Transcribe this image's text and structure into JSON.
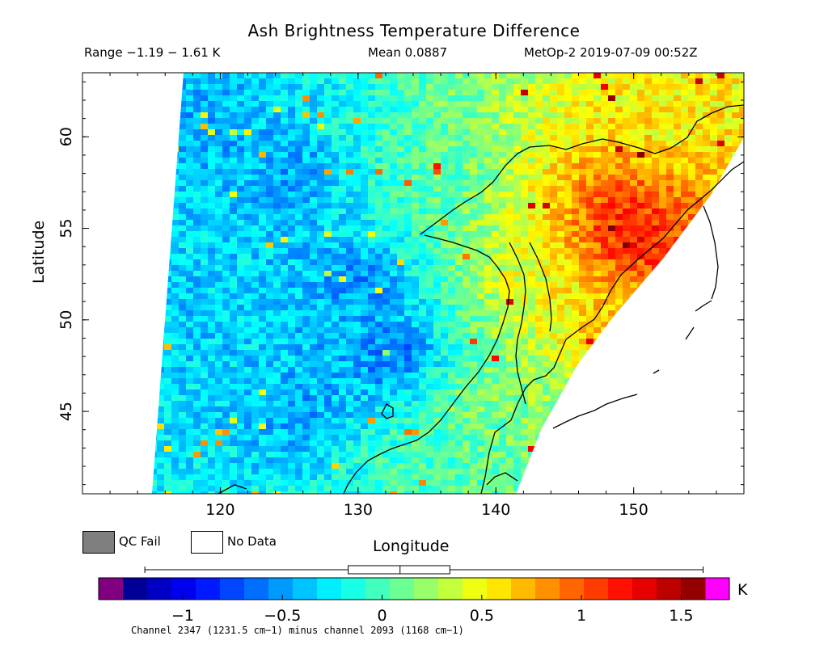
{
  "header": {
    "title": "Ash Brightness Temperature Difference",
    "range": "Range −1.19 − 1.61 K",
    "mean": "Mean 0.0887",
    "satellite": "MetOp-2 2019-07-09 00:52Z"
  },
  "legend": {
    "qc_fail": "QC Fail",
    "no_data": "No Data",
    "qc_fail_color": "#7f7f7f",
    "no_data_color": "#ffffff"
  },
  "colorbar": {
    "units": "K",
    "min": -1.3,
    "max": 1.62,
    "ticks": [
      "−1",
      "−0.5",
      "0",
      "0.5",
      "1",
      "1.5"
    ],
    "tick_values": [
      -1,
      -0.5,
      0,
      0.5,
      1,
      1.5
    ],
    "under_color": "#800080",
    "over_color": "#ff00ff",
    "boxplot": {
      "min": -1.19,
      "q1": -0.17,
      "median": 0.09,
      "q3": 0.34,
      "max": 1.61
    }
  },
  "footer": "Channel 2347 (1231.5 cm−1) minus channel 2093 (1168 cm−1)",
  "chart_data": {
    "type": "heatmap",
    "title": "Ash Brightness Temperature Difference",
    "xlabel": "Longitude",
    "ylabel": "Latitude",
    "xlim": [
      110,
      158
    ],
    "ylim": [
      40.5,
      63.5
    ],
    "xticks": [
      "120",
      "130",
      "140",
      "150"
    ],
    "xtick_values": [
      120,
      130,
      140,
      150
    ],
    "yticks": [
      "45",
      "50",
      "55",
      "60"
    ],
    "ytick_values": [
      45,
      50,
      55,
      60
    ],
    "value_range": [
      -1.19,
      1.61
    ],
    "mean": 0.0887,
    "units": "K",
    "regions": [
      {
        "lon": 119,
        "lat": 61,
        "value": -0.4
      },
      {
        "lon": 125,
        "lat": 58,
        "value": -0.45
      },
      {
        "lon": 118,
        "lat": 50,
        "value": -0.3
      },
      {
        "lon": 130,
        "lat": 52,
        "value": -0.55
      },
      {
        "lon": 133,
        "lat": 48,
        "value": -0.75
      },
      {
        "lon": 126,
        "lat": 45,
        "value": -0.45
      },
      {
        "lon": 136,
        "lat": 58,
        "value": 0.1
      },
      {
        "lon": 138,
        "lat": 46,
        "value": 0.3
      },
      {
        "lon": 142,
        "lat": 52,
        "value": 0.5
      },
      {
        "lon": 147,
        "lat": 50,
        "value": 0.7
      },
      {
        "lon": 149,
        "lat": 56,
        "value": 1.1
      },
      {
        "lon": 150,
        "lat": 54.5,
        "value": 1.4
      },
      {
        "lon": 153,
        "lat": 60,
        "value": 0.55
      },
      {
        "lon": 134,
        "lat": 42,
        "value": 0.1
      }
    ]
  }
}
